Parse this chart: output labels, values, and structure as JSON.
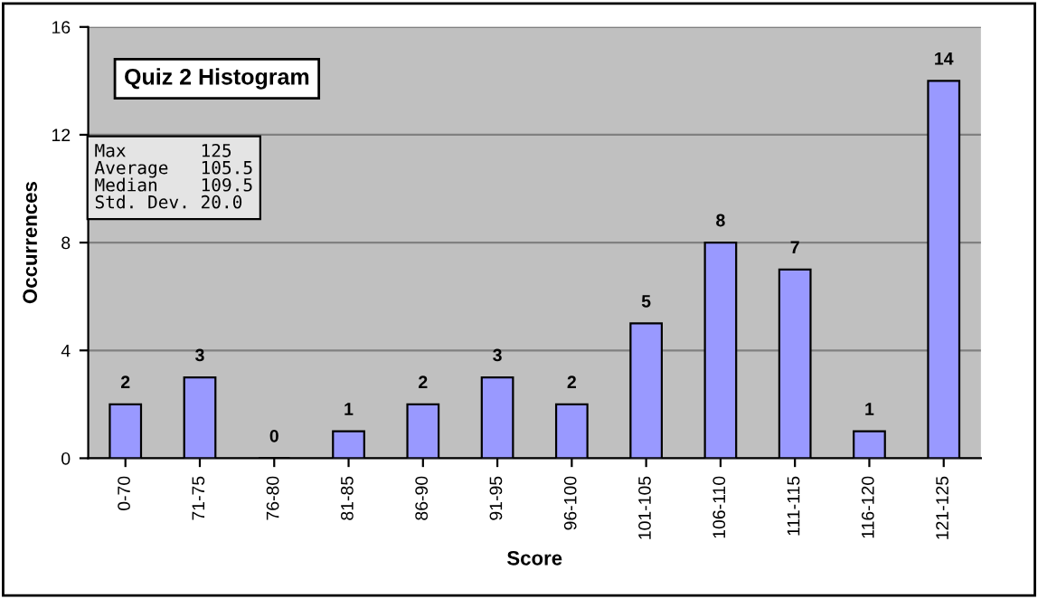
{
  "chart_data": {
    "type": "bar",
    "title": "Quiz 2 Histogram",
    "xlabel": "Score",
    "ylabel": "Occurrences",
    "categories": [
      "0-70",
      "71-75",
      "76-80",
      "81-85",
      "86-90",
      "91-95",
      "96-100",
      "101-105",
      "106-110",
      "111-115",
      "116-120",
      "121-125"
    ],
    "values": [
      2,
      3,
      0,
      1,
      2,
      3,
      2,
      5,
      8,
      7,
      1,
      14
    ],
    "color": "#9999ff",
    "ylim": [
      0,
      16
    ],
    "yticks": [
      0,
      4,
      8,
      12,
      16
    ],
    "grid": "y",
    "data_labels": true,
    "annotations": [
      "Max       125",
      "Average   105.5",
      "Median    109.5",
      "Std. Dev. 20.0"
    ]
  }
}
